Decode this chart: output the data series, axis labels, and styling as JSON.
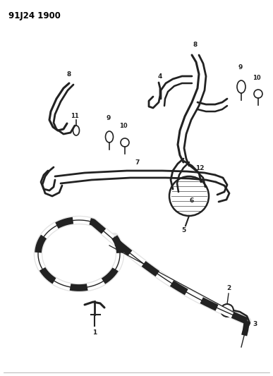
{
  "title": "91J24 1900",
  "bg_color": "#ffffff",
  "line_color": "#222222",
  "text_color": "#000000",
  "fig_width": 3.87,
  "fig_height": 5.33,
  "dpi": 100
}
